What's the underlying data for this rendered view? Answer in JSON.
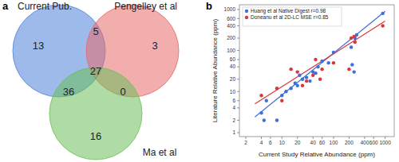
{
  "chart_data": [
    {
      "type": "venn",
      "panel": "a",
      "sets": [
        {
          "name": "Current Pub.",
          "color": "#4f81d9"
        },
        {
          "name": "Pengelley et al",
          "color": "#e86a6a"
        },
        {
          "name": "Ma et al",
          "color": "#6bbf59"
        }
      ],
      "regions": [
        {
          "sets": [
            0
          ],
          "value": 13
        },
        {
          "sets": [
            1
          ],
          "value": 3
        },
        {
          "sets": [
            2
          ],
          "value": 16
        },
        {
          "sets": [
            0,
            1
          ],
          "value": 5
        },
        {
          "sets": [
            0,
            2
          ],
          "value": 36
        },
        {
          "sets": [
            1,
            2
          ],
          "value": 0
        },
        {
          "sets": [
            0,
            1,
            2
          ],
          "value": 27
        }
      ]
    },
    {
      "type": "scatter",
      "panel": "b",
      "log": true,
      "grid": false,
      "legend": "upper left",
      "x_label": "Current Study Relative Abundance (ppm)",
      "y_label": "Literature Relative Abundance (ppm)",
      "xlim": [
        1.5,
        1500
      ],
      "ylim": [
        0.8,
        1300
      ],
      "xticks": [
        2,
        4,
        6,
        10,
        20,
        40,
        60,
        100,
        200,
        400,
        600,
        1000
      ],
      "yticks": [
        1,
        2,
        4,
        6,
        10,
        20,
        40,
        60,
        100,
        200,
        400,
        600,
        1000
      ],
      "series": [
        {
          "name": "Huang et al Native Digest r=0.98",
          "color": "#3f6fd8",
          "marker": "circle",
          "x": [
            4,
            4.5,
            5,
            8,
            10,
            12,
            15,
            18,
            20,
            22,
            25,
            30,
            35,
            40,
            45,
            50,
            60,
            80,
            100,
            230,
            250,
            220,
            260,
            280,
            900
          ],
          "values": [
            3,
            2,
            6,
            2,
            8,
            10,
            12,
            16,
            14,
            25,
            20,
            22,
            18,
            30,
            28,
            40,
            55,
            50,
            90,
            45,
            30,
            120,
            200,
            240,
            800
          ],
          "fit_x": [
            3,
            1000
          ],
          "fit_values": [
            2.4,
            900
          ]
        },
        {
          "name": "Doneanu et al 2D-LC MSE r=0.85",
          "color": "#d9383a",
          "marker": "circle",
          "x": [
            4,
            8,
            10,
            15,
            20,
            25,
            30,
            40,
            45,
            55,
            60,
            100,
            200,
            220,
            250,
            260,
            900
          ],
          "values": [
            8,
            12,
            6,
            35,
            30,
            14,
            18,
            25,
            60,
            20,
            35,
            50,
            35,
            200,
            220,
            160,
            400
          ],
          "fit_x": [
            3,
            1000
          ],
          "fit_values": [
            5,
            520
          ]
        }
      ]
    }
  ]
}
